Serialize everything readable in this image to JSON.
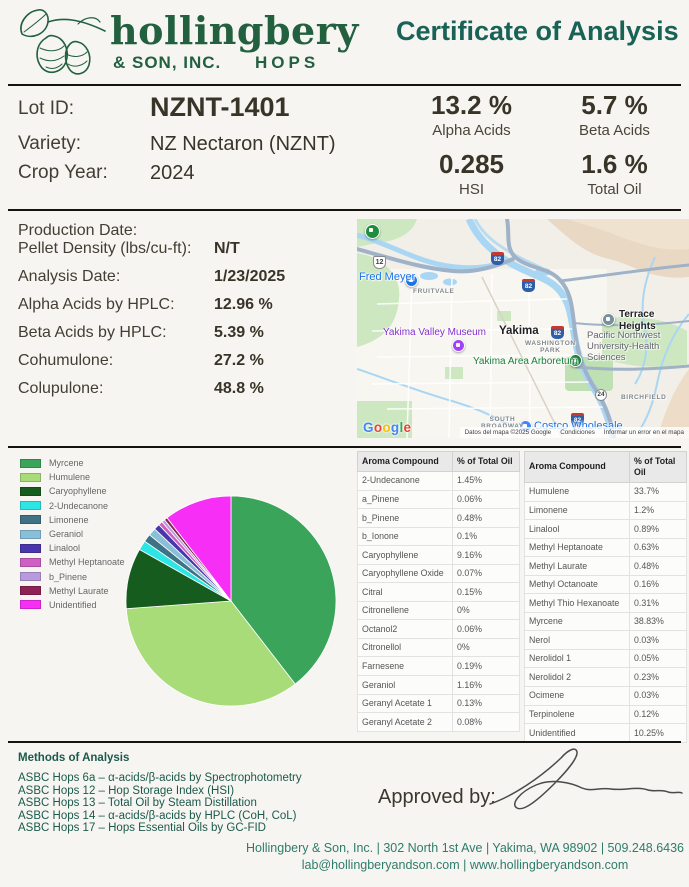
{
  "header": {
    "logo_name": "hollingbery",
    "logo_sub": "& SON, INC.",
    "logo_hops": "HOPS",
    "title": "Certificate of Analysis"
  },
  "lot": {
    "lot_id_label": "Lot ID:",
    "lot_id": "NZNT-1401",
    "variety_label": "Variety:",
    "variety": "NZ Nectaron (NZNT)",
    "crop_year_label": "Crop Year:",
    "crop_year": "2024",
    "stats": [
      {
        "value": "13.2 %",
        "label": "Alpha Acids"
      },
      {
        "value": "5.7 %",
        "label": "Beta Acids"
      },
      {
        "value": "0.285",
        "label": "HSI"
      },
      {
        "value": "1.6 %",
        "label": "Total Oil"
      }
    ]
  },
  "details": {
    "rows": [
      {
        "label": "Production Date:",
        "value": ""
      },
      {
        "label": "Pellet Density (lbs/cu-ft):",
        "value": "N/T"
      },
      {
        "label": "Analysis Date:",
        "value": "1/23/2025"
      },
      {
        "label": "Alpha Acids by HPLC:",
        "value": "12.96 %"
      },
      {
        "label": "Beta Acids by HPLC:",
        "value": "5.39 %"
      },
      {
        "label": "Cohumulone:",
        "value": "27.2 %"
      },
      {
        "label": "Colupulone:",
        "value": "48.8 %"
      }
    ]
  },
  "map": {
    "google": "Google",
    "attribution": "Datos del mapa ©2025 Google",
    "terms": "Condiciones",
    "report": "Informar un error en el mapa",
    "labels": {
      "fred_meyer": "Fred Meyer",
      "fruitvale": "FRUITVALE",
      "museum": "Yakima Valley Museum",
      "yakima": "Yakima",
      "washington_park": "WASHINGTON\nPARK",
      "arboretum": "Yakima Area Arboretum",
      "terrace_heights": "Terrace\nHeights",
      "university": "Pacific Northwest\nUniversity-Health\nSciences",
      "birchfield": "BIRCHFIELD",
      "south_broadway": "SOUTH\nBROADWAY",
      "costco": "Costco Wholesale",
      "highway_82": "82",
      "highway_12": "12",
      "highway_24": "24"
    }
  },
  "chart_data": {
    "type": "pie",
    "unit": "% of Total Oil",
    "legend_position": "left",
    "slices": [
      {
        "label": "Myrcene",
        "value": 38.83,
        "color": "#3aa45b"
      },
      {
        "label": "Humulene",
        "value": 33.7,
        "color": "#a8dc78"
      },
      {
        "label": "Caryophyllene",
        "value": 9.16,
        "color": "#155c1e"
      },
      {
        "label": "2-Undecanone",
        "value": 1.45,
        "color": "#2ce5e5"
      },
      {
        "label": "Limonene",
        "value": 1.2,
        "color": "#3f7285"
      },
      {
        "label": "Geraniol",
        "value": 1.16,
        "color": "#8abfd8"
      },
      {
        "label": "Linalool",
        "value": 0.89,
        "color": "#4836ad"
      },
      {
        "label": "Methyl Heptanoate",
        "value": 0.63,
        "color": "#cf5fc4"
      },
      {
        "label": "b_Pinene",
        "value": 0.48,
        "color": "#b89bde"
      },
      {
        "label": "Methyl Laurate",
        "value": 0.48,
        "color": "#8e2254"
      },
      {
        "label": "Unidentified",
        "value": 10.25,
        "color": "#f62ef6"
      }
    ]
  },
  "tables": [
    {
      "headers": [
        "Aroma Compound",
        "% of Total Oil"
      ],
      "rows": [
        [
          "2-Undecanone",
          "1.45%"
        ],
        [
          "a_Pinene",
          "0.06%"
        ],
        [
          "b_Pinene",
          "0.48%"
        ],
        [
          "b_Ionone",
          "0.1%"
        ],
        [
          "Caryophyllene",
          "9.16%"
        ],
        [
          "Caryophyllene Oxide",
          "0.07%"
        ],
        [
          "Citral",
          "0.15%"
        ],
        [
          "Citronellene",
          "0%"
        ],
        [
          "Octanol2",
          "0.06%"
        ],
        [
          "Citronellol",
          "0%"
        ],
        [
          "Farnesene",
          "0.19%"
        ],
        [
          "Geraniol",
          "1.16%"
        ],
        [
          "Geranyl Acetate 1",
          "0.13%"
        ],
        [
          "Geranyl Acetate 2",
          "0.08%"
        ]
      ]
    },
    {
      "headers": [
        "Aroma Compound",
        "% of Total Oil"
      ],
      "rows": [
        [
          "Humulene",
          "33.7%"
        ],
        [
          "Limonene",
          "1.2%"
        ],
        [
          "Linalool",
          "0.89%"
        ],
        [
          "Methyl Heptanoate",
          "0.63%"
        ],
        [
          "Methyl Laurate",
          "0.48%"
        ],
        [
          "Methyl Octanoate",
          "0.16%"
        ],
        [
          "Methyl Thio Hexanoate",
          "0.31%"
        ],
        [
          "Myrcene",
          "38.83%"
        ],
        [
          "Nerol",
          "0.03%"
        ],
        [
          "Nerolidol 1",
          "0.05%"
        ],
        [
          "Nerolidol 2",
          "0.23%"
        ],
        [
          "Ocimene",
          "0.03%"
        ],
        [
          "Terpinolene",
          "0.12%"
        ],
        [
          "Unidentified",
          "10.25%"
        ]
      ]
    }
  ],
  "methods": {
    "title": "Methods of Analysis",
    "items": [
      "ASBC Hops 6a – α-acids/β-acids by Spectrophotometry",
      "ASBC Hops 12 – Hop Storage Index (HSI)",
      "ASBC Hops 13 – Total Oil by Steam Distillation",
      "ASBC Hops 14 – α-acids/β-acids by HPLC (CoH, CoL)",
      "ASBC Hops 17 – Hops Essential Oils by GC-FID"
    ]
  },
  "approval": {
    "label": "Approved by:"
  },
  "footer": {
    "line1": "Hollingbery & Son, Inc. | 302 North 1st Ave | Yakima, WA 98902 | 509.248.6436",
    "line2": "lab@hollingberyandson.com | www.hollingberyandson.com"
  },
  "colors": {
    "accent_teal": "#186355",
    "logo_green": "#23603f",
    "methods_teal": "#1b5a4b",
    "footer_teal": "#2e7c6b",
    "google_letters": [
      "#4285F4",
      "#EA4335",
      "#FBBC05",
      "#4285F4",
      "#34A853",
      "#EA4335"
    ]
  }
}
